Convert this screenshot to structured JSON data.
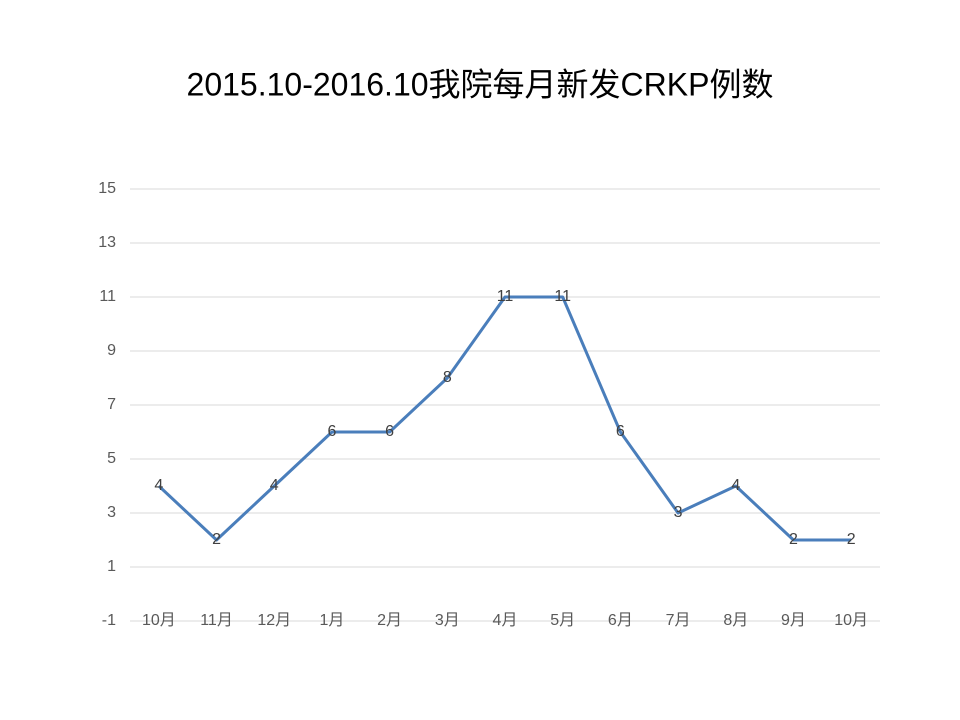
{
  "chart_data": {
    "type": "line",
    "title": "2015.10-2016.10我院每月新发CRKP例数",
    "categories": [
      "10月",
      "11月",
      "12月",
      "1月",
      "2月",
      "3月",
      "4月",
      "5月",
      "6月",
      "7月",
      "8月",
      "9月",
      "10月"
    ],
    "values": [
      4,
      2,
      4,
      6,
      6,
      8,
      11,
      11,
      6,
      3,
      4,
      2,
      2
    ],
    "color": "#4a7ebb",
    "ylim": [
      -1,
      15
    ],
    "yticks": [
      -1,
      1,
      3,
      5,
      7,
      9,
      11,
      13,
      15
    ],
    "grid": true,
    "data_labels": true
  }
}
